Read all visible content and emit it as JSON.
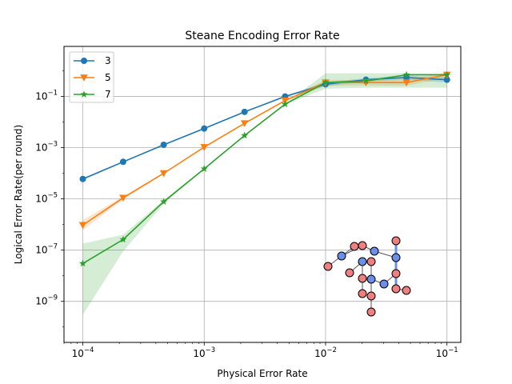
{
  "chart_data": {
    "type": "line",
    "title": "Steane Encoding Error Rate",
    "xlabel": "Physical Error Rate",
    "ylabel": "Logical Error Rate(per round)",
    "xscale": "log",
    "yscale": "log",
    "xlim": [
      7e-05,
      0.13
    ],
    "ylim": [
      2.5e-11,
      9
    ],
    "grid": true,
    "legend_position": "top-left",
    "x_tick_labels": [
      {
        "base": "10",
        "exp": "−4",
        "value": 0.0001
      },
      {
        "base": "10",
        "exp": "−3",
        "value": 0.001
      },
      {
        "base": "10",
        "exp": "−2",
        "value": 0.01
      },
      {
        "base": "10",
        "exp": "−1",
        "value": 0.1
      }
    ],
    "y_tick_labels": [
      {
        "base": "10",
        "exp": "−1",
        "value": 0.1
      },
      {
        "base": "10",
        "exp": "−3",
        "value": 0.001
      },
      {
        "base": "10",
        "exp": "−5",
        "value": 1e-05
      },
      {
        "base": "10",
        "exp": "−7",
        "value": 1e-07
      },
      {
        "base": "10",
        "exp": "−9",
        "value": 1e-09
      }
    ],
    "x": [
      0.0001,
      0.000215,
      0.000464,
      0.001,
      0.00215,
      0.00464,
      0.01,
      0.0215,
      0.0464,
      0.1
    ],
    "series": [
      {
        "name": "3",
        "color": "#1f77b4",
        "marker": "circle",
        "values": [
          6e-05,
          0.00028,
          0.0013,
          0.0056,
          0.025,
          0.1,
          0.3,
          0.45,
          0.55,
          0.45
        ],
        "band_low": [
          5.5e-05,
          0.00026,
          0.00125,
          0.0054,
          0.024,
          0.095,
          0.25,
          0.38,
          0.45,
          0.35
        ],
        "band_high": [
          6.5e-05,
          0.0003,
          0.00135,
          0.0058,
          0.026,
          0.105,
          0.36,
          0.52,
          0.65,
          0.55
        ]
      },
      {
        "name": "5",
        "color": "#ff7f0e",
        "marker": "triangle-down",
        "values": [
          9.5e-07,
          1.1e-05,
          0.0001,
          0.00105,
          0.0089,
          0.069,
          0.35,
          0.35,
          0.35,
          0.7
        ],
        "band_low": [
          6e-07,
          9.5e-06,
          9.5e-05,
          0.001,
          0.0086,
          0.066,
          0.26,
          0.27,
          0.26,
          0.55
        ],
        "band_high": [
          1.5e-06,
          1.25e-05,
          0.000105,
          0.0011,
          0.0092,
          0.072,
          0.45,
          0.43,
          0.45,
          0.85
        ]
      },
      {
        "name": "7",
        "color": "#2ca02c",
        "marker": "star",
        "values": [
          3e-08,
          2.6e-07,
          7.8e-06,
          0.00015,
          0.003,
          0.05,
          0.35,
          0.4,
          0.7,
          0.7
        ],
        "band_low": [
          3e-10,
          9e-08,
          6.5e-06,
          0.000145,
          0.0029,
          0.048,
          0.2,
          0.22,
          0.22,
          0.22
        ],
        "band_high": [
          1.8e-07,
          4e-07,
          9e-06,
          0.000155,
          0.0031,
          0.052,
          0.8,
          0.8,
          0.8,
          0.8
        ]
      }
    ]
  }
}
